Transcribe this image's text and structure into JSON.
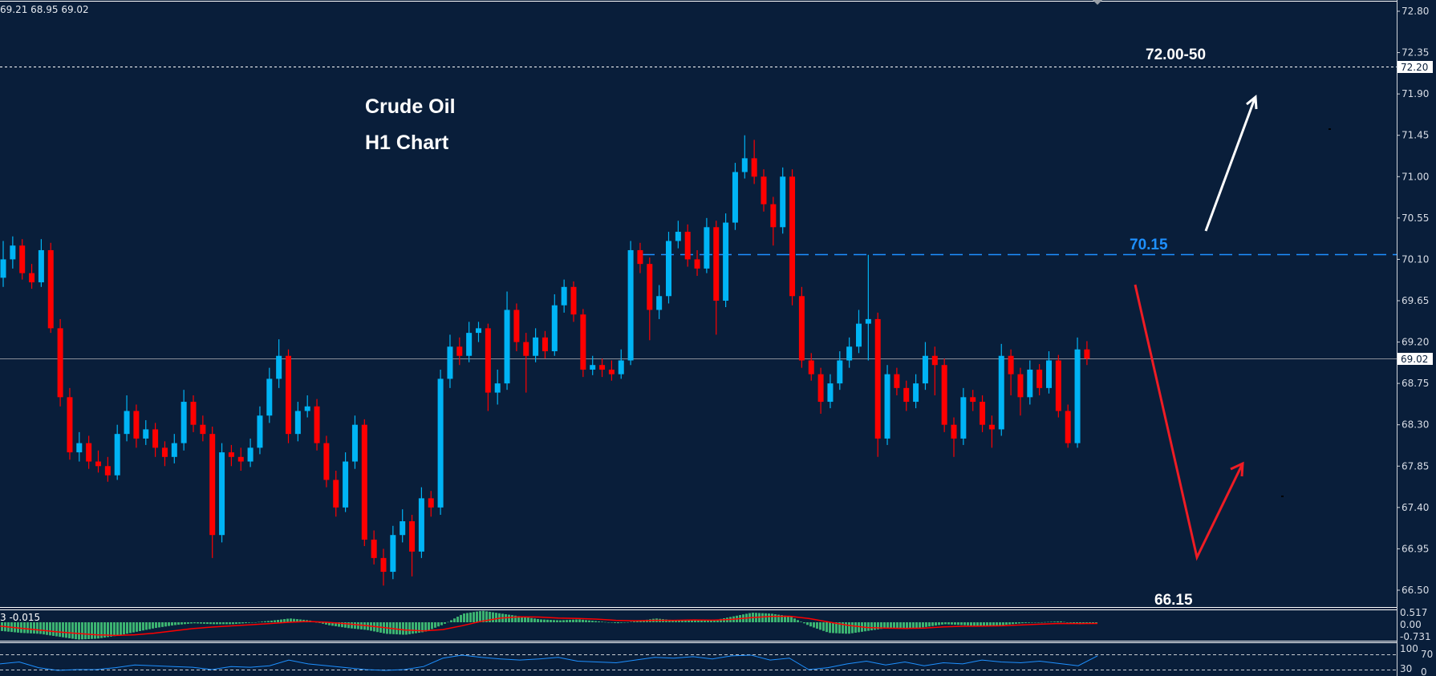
{
  "header": {
    "ohlc_readout": "69.21 68.95 69.02"
  },
  "annotations": {
    "title_line1": "Crude Oil",
    "title_line2": "H1 Chart",
    "target_label": "72.00-50",
    "resistance_label": "70.15",
    "support_label": "66.15"
  },
  "colors": {
    "background": "#091e3a",
    "bull": "#00b4f5",
    "bear": "#ff0000",
    "current_price_line": "#8a8f99",
    "resistance_line": "#1e90ff",
    "macd_histogram": "#3cb371",
    "macd_signal": "#ff0000",
    "rsi_line": "#1e90ff"
  },
  "price_axis": {
    "ticks": [
      "72.80",
      "72.35",
      "71.90",
      "71.45",
      "71.00",
      "70.55",
      "70.10",
      "69.65",
      "69.20",
      "68.75",
      "68.30",
      "67.85",
      "67.40",
      "66.95",
      "66.50"
    ],
    "current_price": "69.02",
    "marked_level": "72.20"
  },
  "macd_panel": {
    "label": "3 -0.015",
    "axis": [
      "0.517",
      "0.00",
      "-0.731"
    ]
  },
  "rsi_panel": {
    "axis": [
      "100",
      "70",
      "30",
      "0"
    ]
  },
  "chart_data": {
    "type": "candlestick",
    "title": "Crude Oil H1 Chart",
    "ylim": [
      66.35,
      72.9
    ],
    "grid": false,
    "levels": {
      "current": 69.02,
      "target_zone": 72.2,
      "resistance": 70.15,
      "support": 66.15
    },
    "ohlc": [
      [
        69.9,
        70.3,
        69.8,
        70.1
      ],
      [
        70.1,
        70.35,
        70.0,
        70.25
      ],
      [
        70.25,
        70.32,
        69.88,
        69.95
      ],
      [
        69.95,
        70.05,
        69.78,
        69.85
      ],
      [
        69.85,
        70.32,
        69.8,
        70.2
      ],
      [
        70.2,
        70.28,
        69.3,
        69.35
      ],
      [
        69.35,
        69.45,
        68.5,
        68.6
      ],
      [
        68.6,
        68.7,
        67.92,
        68.0
      ],
      [
        68.0,
        68.22,
        67.9,
        68.1
      ],
      [
        68.1,
        68.18,
        67.82,
        67.9
      ],
      [
        67.9,
        68.02,
        67.78,
        67.85
      ],
      [
        67.85,
        67.95,
        67.68,
        67.75
      ],
      [
        67.75,
        68.3,
        67.7,
        68.2
      ],
      [
        68.2,
        68.62,
        68.12,
        68.45
      ],
      [
        68.45,
        68.52,
        68.05,
        68.15
      ],
      [
        68.15,
        68.35,
        68.08,
        68.25
      ],
      [
        68.25,
        68.32,
        67.95,
        68.05
      ],
      [
        68.05,
        68.12,
        67.85,
        67.95
      ],
      [
        67.95,
        68.2,
        67.88,
        68.1
      ],
      [
        68.1,
        68.68,
        68.02,
        68.55
      ],
      [
        68.55,
        68.62,
        68.22,
        68.3
      ],
      [
        68.3,
        68.4,
        68.12,
        68.2
      ],
      [
        68.2,
        68.28,
        66.85,
        67.1
      ],
      [
        67.1,
        68.1,
        67.02,
        68.0
      ],
      [
        68.0,
        68.08,
        67.85,
        67.95
      ],
      [
        67.95,
        68.05,
        67.8,
        67.9
      ],
      [
        67.9,
        68.15,
        67.84,
        68.05
      ],
      [
        68.05,
        68.5,
        67.98,
        68.4
      ],
      [
        68.4,
        68.92,
        68.32,
        68.8
      ],
      [
        68.8,
        69.23,
        68.7,
        69.05
      ],
      [
        69.05,
        69.12,
        68.1,
        68.2
      ],
      [
        68.2,
        68.55,
        68.12,
        68.45
      ],
      [
        68.45,
        68.62,
        68.38,
        68.5
      ],
      [
        68.5,
        68.58,
        68.02,
        68.1
      ],
      [
        68.1,
        68.18,
        67.62,
        67.7
      ],
      [
        67.7,
        67.8,
        67.3,
        67.4
      ],
      [
        67.4,
        68.0,
        67.35,
        67.9
      ],
      [
        67.9,
        68.4,
        67.82,
        68.3
      ],
      [
        68.3,
        68.36,
        66.98,
        67.05
      ],
      [
        67.05,
        67.15,
        66.78,
        66.85
      ],
      [
        66.85,
        66.95,
        66.55,
        66.7
      ],
      [
        66.7,
        67.2,
        66.62,
        67.1
      ],
      [
        67.1,
        67.38,
        67.02,
        67.25
      ],
      [
        67.25,
        67.32,
        66.65,
        66.92
      ],
      [
        66.92,
        67.62,
        66.85,
        67.5
      ],
      [
        67.5,
        67.58,
        67.3,
        67.4
      ],
      [
        67.4,
        68.9,
        67.32,
        68.8
      ],
      [
        68.8,
        69.28,
        68.7,
        69.15
      ],
      [
        69.15,
        69.25,
        68.95,
        69.05
      ],
      [
        69.05,
        69.42,
        68.98,
        69.3
      ],
      [
        69.3,
        69.42,
        69.2,
        69.35
      ],
      [
        69.35,
        69.4,
        68.45,
        68.65
      ],
      [
        68.65,
        68.9,
        68.52,
        68.75
      ],
      [
        68.75,
        69.75,
        68.68,
        69.55
      ],
      [
        69.55,
        69.62,
        69.1,
        69.2
      ],
      [
        69.2,
        69.3,
        68.65,
        69.05
      ],
      [
        69.05,
        69.35,
        68.98,
        69.25
      ],
      [
        69.25,
        69.32,
        69.02,
        69.1
      ],
      [
        69.1,
        69.72,
        69.05,
        69.6
      ],
      [
        69.6,
        69.88,
        69.52,
        69.8
      ],
      [
        69.8,
        69.86,
        69.42,
        69.5
      ],
      [
        69.5,
        69.56,
        68.82,
        68.9
      ],
      [
        68.9,
        69.05,
        68.84,
        68.95
      ],
      [
        68.95,
        69.02,
        68.82,
        68.9
      ],
      [
        68.9,
        69.0,
        68.78,
        68.85
      ],
      [
        68.85,
        69.12,
        68.8,
        69.0
      ],
      [
        69.0,
        70.3,
        68.95,
        70.2
      ],
      [
        70.2,
        70.28,
        69.95,
        70.05
      ],
      [
        70.05,
        70.12,
        69.22,
        69.55
      ],
      [
        69.55,
        69.82,
        69.45,
        69.7
      ],
      [
        69.7,
        70.4,
        69.62,
        70.3
      ],
      [
        70.3,
        70.52,
        70.22,
        70.4
      ],
      [
        70.4,
        70.48,
        70.02,
        70.1
      ],
      [
        70.1,
        70.2,
        69.92,
        70.0
      ],
      [
        70.0,
        70.55,
        69.95,
        70.45
      ],
      [
        70.45,
        70.52,
        69.28,
        69.65
      ],
      [
        69.65,
        70.6,
        69.58,
        70.5
      ],
      [
        70.5,
        71.15,
        70.42,
        71.05
      ],
      [
        71.05,
        71.45,
        70.98,
        71.2
      ],
      [
        71.2,
        71.4,
        70.92,
        71.0
      ],
      [
        71.0,
        71.08,
        70.62,
        70.7
      ],
      [
        70.7,
        70.78,
        70.25,
        70.45
      ],
      [
        70.45,
        71.1,
        70.38,
        71.0
      ],
      [
        71.0,
        71.08,
        69.6,
        69.7
      ],
      [
        69.7,
        69.8,
        68.92,
        69.0
      ],
      [
        69.0,
        69.08,
        68.78,
        68.85
      ],
      [
        68.85,
        68.92,
        68.42,
        68.55
      ],
      [
        68.55,
        68.85,
        68.48,
        68.75
      ],
      [
        68.75,
        69.1,
        68.68,
        69.0
      ],
      [
        69.0,
        69.25,
        68.92,
        69.15
      ],
      [
        69.15,
        69.55,
        69.08,
        69.4
      ],
      [
        69.4,
        70.15,
        69.0,
        69.45
      ],
      [
        69.45,
        69.52,
        67.95,
        68.15
      ],
      [
        68.15,
        68.95,
        68.08,
        68.85
      ],
      [
        68.85,
        68.92,
        68.62,
        68.7
      ],
      [
        68.7,
        68.78,
        68.45,
        68.55
      ],
      [
        68.55,
        68.85,
        68.48,
        68.75
      ],
      [
        68.75,
        69.2,
        68.68,
        69.05
      ],
      [
        69.05,
        69.15,
        68.62,
        68.95
      ],
      [
        68.95,
        69.02,
        68.22,
        68.3
      ],
      [
        68.3,
        68.38,
        67.95,
        68.15
      ],
      [
        68.15,
        68.7,
        68.08,
        68.6
      ],
      [
        68.6,
        68.68,
        68.45,
        68.55
      ],
      [
        68.55,
        68.62,
        68.22,
        68.3
      ],
      [
        68.3,
        68.4,
        68.05,
        68.25
      ],
      [
        68.25,
        69.18,
        68.18,
        69.05
      ],
      [
        69.05,
        69.12,
        68.62,
        68.85
      ],
      [
        68.85,
        68.92,
        68.4,
        68.6
      ],
      [
        68.6,
        69.0,
        68.52,
        68.9
      ],
      [
        68.9,
        68.96,
        68.62,
        68.7
      ],
      [
        68.7,
        69.1,
        68.64,
        69.0
      ],
      [
        69.0,
        69.06,
        68.38,
        68.45
      ],
      [
        68.45,
        68.52,
        68.05,
        68.1
      ],
      [
        68.1,
        69.25,
        68.05,
        69.12
      ],
      [
        69.12,
        69.21,
        68.95,
        69.02
      ]
    ],
    "macd_histogram": [
      -0.45,
      -0.55,
      -0.6,
      -0.75,
      -0.9,
      -0.85,
      -0.7,
      -0.5,
      -0.3,
      -0.15,
      -0.05,
      -0.1,
      -0.1,
      -0.02,
      0.08,
      0.2,
      0.1,
      -0.15,
      -0.3,
      -0.4,
      -0.6,
      -0.65,
      -0.5,
      -0.1,
      0.45,
      0.6,
      0.45,
      0.3,
      0.15,
      0.1,
      0.15,
      0.05,
      -0.05,
      0.05,
      0.2,
      0.1,
      0.15,
      0.1,
      0.3,
      0.5,
      0.45,
      0.3,
      -0.2,
      -0.55,
      -0.6,
      -0.45,
      -0.3,
      -0.35,
      -0.25,
      -0.1,
      -0.15,
      -0.2,
      -0.15,
      -0.05,
      0,
      0.05,
      -0.1,
      -0.05
    ],
    "macd_signal": [
      -0.2,
      -0.3,
      -0.4,
      -0.5,
      -0.58,
      -0.65,
      -0.68,
      -0.65,
      -0.57,
      -0.45,
      -0.33,
      -0.25,
      -0.19,
      -0.13,
      -0.07,
      0.0,
      0.04,
      0.0,
      -0.08,
      -0.17,
      -0.28,
      -0.4,
      -0.45,
      -0.38,
      -0.18,
      0.05,
      0.22,
      0.28,
      0.27,
      0.22,
      0.2,
      0.16,
      0.1,
      0.08,
      0.1,
      0.1,
      0.12,
      0.11,
      0.15,
      0.24,
      0.3,
      0.31,
      0.2,
      0.02,
      -0.15,
      -0.27,
      -0.3,
      -0.32,
      -0.3,
      -0.24,
      -0.21,
      -0.2,
      -0.18,
      -0.14,
      -0.1,
      -0.06,
      -0.07,
      -0.06
    ],
    "rsi": [
      45,
      50,
      35,
      28,
      30,
      30,
      35,
      42,
      40,
      38,
      36,
      30,
      38,
      36,
      40,
      55,
      45,
      40,
      35,
      30,
      28,
      30,
      38,
      60,
      68,
      62,
      58,
      55,
      58,
      62,
      52,
      50,
      48,
      55,
      62,
      60,
      64,
      58,
      66,
      68,
      55,
      60,
      30,
      35,
      45,
      52,
      42,
      50,
      40,
      48,
      45,
      55,
      50,
      48,
      52,
      46,
      40,
      66
    ],
    "rsi_levels": [
      70,
      30
    ]
  }
}
